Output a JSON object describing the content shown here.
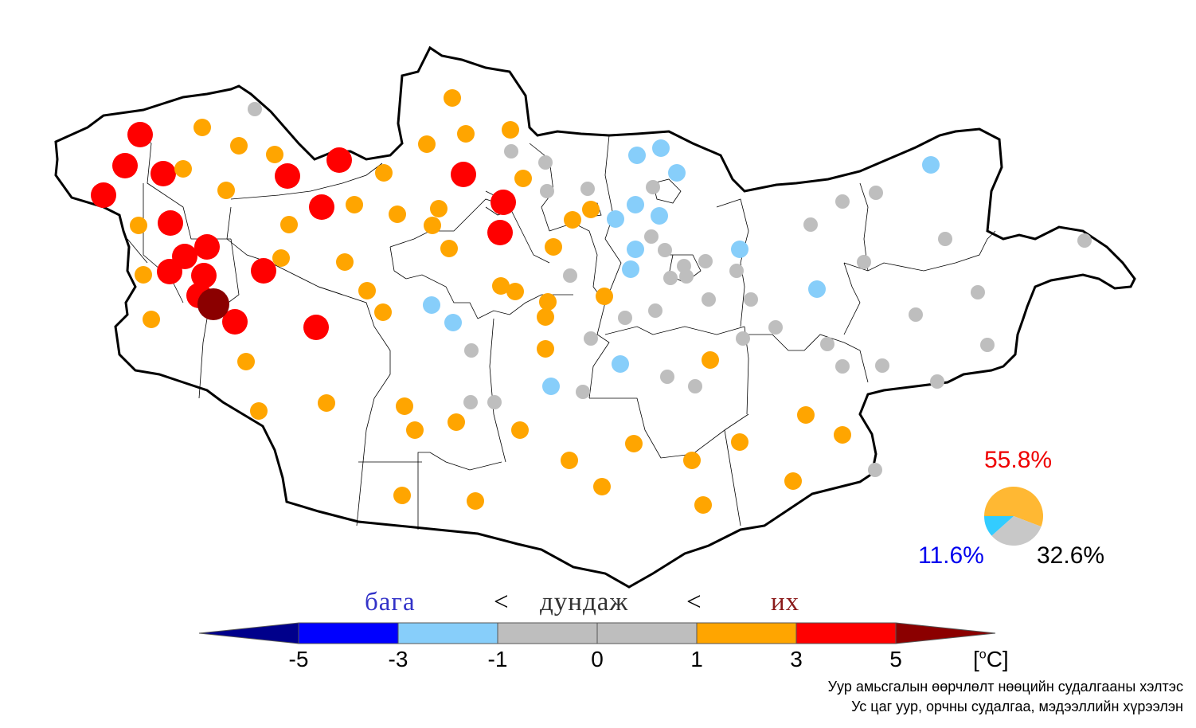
{
  "legend": {
    "word_low": "бага",
    "sep1": "<",
    "word_mid": "дундаж",
    "sep2": "<",
    "word_high": "их",
    "ticks": [
      "-5",
      "-3",
      "-1",
      "0",
      "1",
      "3",
      "5"
    ],
    "unit_prefix": "[",
    "unit_sup": "o",
    "unit_suffix": "C]",
    "bins": [
      {
        "range": "< -5",
        "color": "#00008b"
      },
      {
        "range": "-5 to -3",
        "color": "#0000ff"
      },
      {
        "range": "-3 to -1",
        "color": "#87cefa"
      },
      {
        "range": "-1 to 0",
        "color": "#bebebe"
      },
      {
        "range": "0 to 1",
        "color": "#bebebe"
      },
      {
        "range": "1 to 3",
        "color": "#ffa500"
      },
      {
        "range": "3 to 5",
        "color": "#ff0000"
      },
      {
        "range": "> 5",
        "color": "#8b0000"
      }
    ]
  },
  "pie": {
    "above_label": "55.8%",
    "below_label": "11.6%",
    "normal_label": "32.6%",
    "above_value": 55.8,
    "below_value": 11.6,
    "normal_value": 32.6,
    "colors": {
      "above": "#ffb833",
      "below": "#33ccff",
      "normal": "#c8c8c8"
    }
  },
  "credit": {
    "line1": "Уур амьсгалын өөрчлөлт нөөцийн судалгааны хэлтэс",
    "line2": "Ус цаг уур, орчны судалгаа, мэдээллийн хүрээлэн"
  }
}
